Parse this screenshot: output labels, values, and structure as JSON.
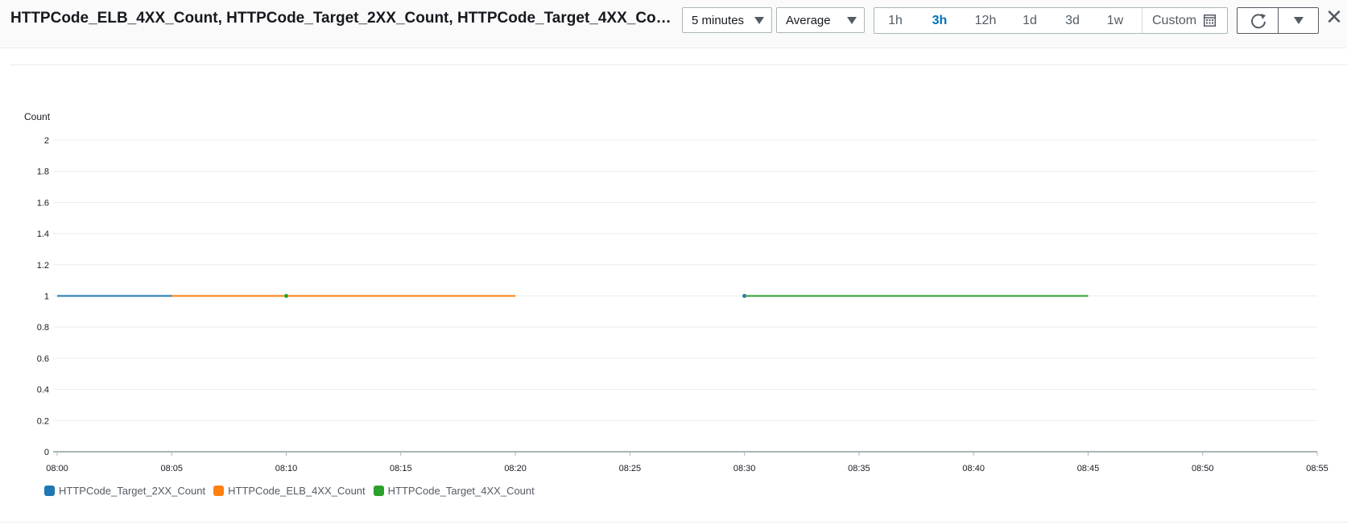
{
  "header": {
    "title": "HTTPCode_ELB_4XX_Count, HTTPCode_Target_2XX_Count, HTTPCode_Target_4XX_Co…",
    "period_select": "5 minutes",
    "statistic_select": "Average",
    "ranges": [
      "1h",
      "3h",
      "12h",
      "1d",
      "3d",
      "1w"
    ],
    "active_range": "3h",
    "custom_label": "Custom",
    "icons": {
      "period_caret": "caret-down-icon",
      "statistic_caret": "caret-down-icon",
      "custom": "calendar-icon",
      "refresh": "refresh-icon",
      "more": "caret-down-icon",
      "close": "close-icon"
    }
  },
  "chart_data": {
    "type": "line",
    "ylabel": "Count",
    "xlabel": "",
    "title": "",
    "ylim": [
      0,
      2
    ],
    "y_ticks": [
      "0",
      "0.2",
      "0.4",
      "0.6",
      "0.8",
      "1",
      "1.2",
      "1.4",
      "1.6",
      "1.8",
      "2"
    ],
    "x_ticks": [
      "08:00",
      "08:05",
      "08:10",
      "08:15",
      "08:20",
      "08:25",
      "08:30",
      "08:35",
      "08:40",
      "08:45",
      "08:50",
      "08:55"
    ],
    "xlim": [
      "08:00",
      "08:55"
    ],
    "grid": true,
    "legend_position": "bottom-left",
    "series": [
      {
        "name": "HTTPCode_Target_2XX_Count",
        "color": "#1f77b4",
        "points": [
          {
            "x": "08:00",
            "y": 1
          },
          {
            "x": "08:05",
            "y": 1
          },
          {
            "x": "08:10",
            "y": 1
          },
          {
            "x": "08:30",
            "y": 1
          }
        ]
      },
      {
        "name": "HTTPCode_ELB_4XX_Count",
        "color": "#ff7f0e",
        "points": [
          {
            "x": "08:05",
            "y": 1
          },
          {
            "x": "08:10",
            "y": 1
          },
          {
            "x": "08:15",
            "y": 1
          },
          {
            "x": "08:20",
            "y": 1
          }
        ]
      },
      {
        "name": "HTTPCode_Target_4XX_Count",
        "color": "#2ca02c",
        "points": [
          {
            "x": "08:10",
            "y": 1
          },
          {
            "x": "08:30",
            "y": 1
          },
          {
            "x": "08:35",
            "y": 1
          },
          {
            "x": "08:40",
            "y": 1
          },
          {
            "x": "08:45",
            "y": 1
          }
        ]
      }
    ]
  }
}
